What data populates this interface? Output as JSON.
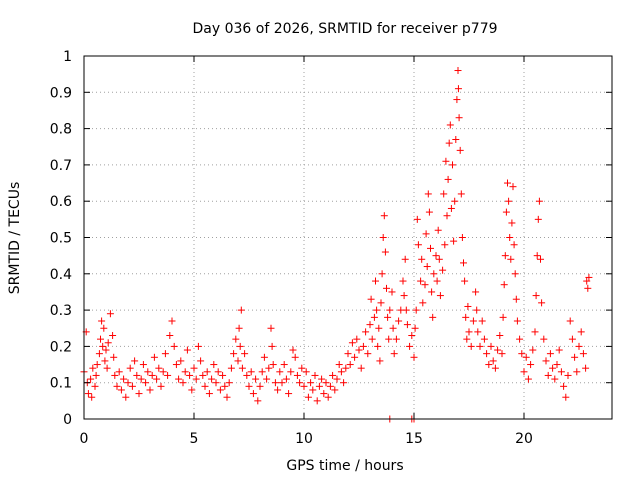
{
  "chart_data": {
    "type": "scatter",
    "title": "Day 036 of 2026, SRMTID for receiver p779",
    "xlabel": "GPS time / hours",
    "ylabel": "SRMTID / TECUs",
    "xlim": [
      0,
      24
    ],
    "ylim": [
      0,
      1
    ],
    "xticks": [
      0,
      5,
      10,
      15,
      20
    ],
    "xtick_labels": [
      "0",
      "5",
      "10",
      "15",
      "20"
    ],
    "yticks": [
      0,
      0.1,
      0.2,
      0.3,
      0.4,
      0.5,
      0.6,
      0.7,
      0.8,
      0.9,
      1
    ],
    "ytick_labels": [
      "0",
      "0.1",
      "0.2",
      "0.3",
      "0.4",
      "0.5",
      "0.6",
      "0.7",
      "0.8",
      "0.9",
      "1"
    ],
    "grid": true,
    "marker": "+",
    "color": "#ff0000",
    "series": [
      {
        "name": "SRMTID",
        "points": [
          [
            0.0,
            0.13
          ],
          [
            0.1,
            0.24
          ],
          [
            0.15,
            0.1
          ],
          [
            0.2,
            0.07
          ],
          [
            0.3,
            0.11
          ],
          [
            0.35,
            0.06
          ],
          [
            0.4,
            0.14
          ],
          [
            0.5,
            0.09
          ],
          [
            0.55,
            0.12
          ],
          [
            0.6,
            0.15
          ],
          [
            0.7,
            0.18
          ],
          [
            0.75,
            0.22
          ],
          [
            0.8,
            0.27
          ],
          [
            0.85,
            0.2
          ],
          [
            0.9,
            0.25
          ],
          [
            0.95,
            0.16
          ],
          [
            1.0,
            0.19
          ],
          [
            1.05,
            0.14
          ],
          [
            1.1,
            0.21
          ],
          [
            1.2,
            0.29
          ],
          [
            1.3,
            0.23
          ],
          [
            1.35,
            0.17
          ],
          [
            1.4,
            0.12
          ],
          [
            1.5,
            0.09
          ],
          [
            1.6,
            0.13
          ],
          [
            1.7,
            0.08
          ],
          [
            1.8,
            0.11
          ],
          [
            1.9,
            0.06
          ],
          [
            2.0,
            0.1
          ],
          [
            2.1,
            0.14
          ],
          [
            2.2,
            0.09
          ],
          [
            2.3,
            0.16
          ],
          [
            2.4,
            0.12
          ],
          [
            2.5,
            0.07
          ],
          [
            2.6,
            0.11
          ],
          [
            2.7,
            0.15
          ],
          [
            2.8,
            0.1
          ],
          [
            2.9,
            0.13
          ],
          [
            3.0,
            0.08
          ],
          [
            3.1,
            0.12
          ],
          [
            3.2,
            0.17
          ],
          [
            3.3,
            0.11
          ],
          [
            3.4,
            0.14
          ],
          [
            3.5,
            0.09
          ],
          [
            3.6,
            0.13
          ],
          [
            3.7,
            0.18
          ],
          [
            3.8,
            0.12
          ],
          [
            3.9,
            0.23
          ],
          [
            4.0,
            0.27
          ],
          [
            4.1,
            0.2
          ],
          [
            4.2,
            0.15
          ],
          [
            4.3,
            0.11
          ],
          [
            4.4,
            0.16
          ],
          [
            4.5,
            0.1
          ],
          [
            4.6,
            0.13
          ],
          [
            4.7,
            0.19
          ],
          [
            4.8,
            0.12
          ],
          [
            4.9,
            0.08
          ],
          [
            5.0,
            0.14
          ],
          [
            5.1,
            0.11
          ],
          [
            5.2,
            0.2
          ],
          [
            5.3,
            0.16
          ],
          [
            5.4,
            0.12
          ],
          [
            5.5,
            0.09
          ],
          [
            5.6,
            0.13
          ],
          [
            5.7,
            0.07
          ],
          [
            5.8,
            0.11
          ],
          [
            5.9,
            0.15
          ],
          [
            6.0,
            0.1
          ],
          [
            6.1,
            0.13
          ],
          [
            6.2,
            0.08
          ],
          [
            6.3,
            0.12
          ],
          [
            6.4,
            0.09
          ],
          [
            6.5,
            0.06
          ],
          [
            6.6,
            0.1
          ],
          [
            6.7,
            0.14
          ],
          [
            6.8,
            0.18
          ],
          [
            6.9,
            0.22
          ],
          [
            7.0,
            0.16
          ],
          [
            7.05,
            0.25
          ],
          [
            7.1,
            0.2
          ],
          [
            7.15,
            0.3
          ],
          [
            7.2,
            0.14
          ],
          [
            7.3,
            0.18
          ],
          [
            7.4,
            0.12
          ],
          [
            7.5,
            0.09
          ],
          [
            7.6,
            0.13
          ],
          [
            7.7,
            0.07
          ],
          [
            7.8,
            0.11
          ],
          [
            7.9,
            0.05
          ],
          [
            8.0,
            0.09
          ],
          [
            8.1,
            0.13
          ],
          [
            8.2,
            0.17
          ],
          [
            8.3,
            0.11
          ],
          [
            8.4,
            0.14
          ],
          [
            8.5,
            0.25
          ],
          [
            8.55,
            0.2
          ],
          [
            8.6,
            0.15
          ],
          [
            8.7,
            0.1
          ],
          [
            8.8,
            0.08
          ],
          [
            8.9,
            0.13
          ],
          [
            9.0,
            0.1
          ],
          [
            9.1,
            0.15
          ],
          [
            9.2,
            0.11
          ],
          [
            9.3,
            0.07
          ],
          [
            9.4,
            0.13
          ],
          [
            9.5,
            0.19
          ],
          [
            9.6,
            0.17
          ],
          [
            9.7,
            0.12
          ],
          [
            9.8,
            0.1
          ],
          [
            9.9,
            0.14
          ],
          [
            10.0,
            0.09
          ],
          [
            10.1,
            0.13
          ],
          [
            10.2,
            0.06
          ],
          [
            10.3,
            0.1
          ],
          [
            10.4,
            0.08
          ],
          [
            10.5,
            0.12
          ],
          [
            10.6,
            0.05
          ],
          [
            10.7,
            0.09
          ],
          [
            10.8,
            0.11
          ],
          [
            10.9,
            0.07
          ],
          [
            11.0,
            0.1
          ],
          [
            11.1,
            0.06
          ],
          [
            11.2,
            0.09
          ],
          [
            11.3,
            0.12
          ],
          [
            11.4,
            0.08
          ],
          [
            11.5,
            0.11
          ],
          [
            11.6,
            0.15
          ],
          [
            11.7,
            0.13
          ],
          [
            11.8,
            0.1
          ],
          [
            11.9,
            0.14
          ],
          [
            12.0,
            0.18
          ],
          [
            12.1,
            0.15
          ],
          [
            12.2,
            0.21
          ],
          [
            12.3,
            0.17
          ],
          [
            12.4,
            0.22
          ],
          [
            12.5,
            0.19
          ],
          [
            12.6,
            0.14
          ],
          [
            12.7,
            0.2
          ],
          [
            12.8,
            0.24
          ],
          [
            12.9,
            0.18
          ],
          [
            13.0,
            0.26
          ],
          [
            13.05,
            0.33
          ],
          [
            13.1,
            0.22
          ],
          [
            13.2,
            0.28
          ],
          [
            13.25,
            0.38
          ],
          [
            13.3,
            0.3
          ],
          [
            13.35,
            0.2
          ],
          [
            13.4,
            0.25
          ],
          [
            13.45,
            0.16
          ],
          [
            13.5,
            0.32
          ],
          [
            13.55,
            0.4
          ],
          [
            13.6,
            0.5
          ],
          [
            13.65,
            0.56
          ],
          [
            13.7,
            0.46
          ],
          [
            13.75,
            0.36
          ],
          [
            13.8,
            0.28
          ],
          [
            13.85,
            0.22
          ],
          [
            13.9,
            0.3
          ],
          [
            14.0,
            0.35
          ],
          [
            14.05,
            0.25
          ],
          [
            14.1,
            0.18
          ],
          [
            14.2,
            0.22
          ],
          [
            14.3,
            0.27
          ],
          [
            14.4,
            0.3
          ],
          [
            14.5,
            0.38
          ],
          [
            14.55,
            0.34
          ],
          [
            14.6,
            0.44
          ],
          [
            14.65,
            0.3
          ],
          [
            14.7,
            0.26
          ],
          [
            14.8,
            0.2
          ],
          [
            14.9,
            0.23
          ],
          [
            15.0,
            0.17
          ],
          [
            15.05,
            0.25
          ],
          [
            15.1,
            0.3
          ],
          [
            15.15,
            0.55
          ],
          [
            15.2,
            0.48
          ],
          [
            15.3,
            0.38
          ],
          [
            15.35,
            0.44
          ],
          [
            15.4,
            0.32
          ],
          [
            15.5,
            0.37
          ],
          [
            15.55,
            0.51
          ],
          [
            15.6,
            0.42
          ],
          [
            15.65,
            0.62
          ],
          [
            15.7,
            0.57
          ],
          [
            15.75,
            0.47
          ],
          [
            15.8,
            0.35
          ],
          [
            15.85,
            0.28
          ],
          [
            15.9,
            0.4
          ],
          [
            16.0,
            0.45
          ],
          [
            16.05,
            0.38
          ],
          [
            16.1,
            0.52
          ],
          [
            16.15,
            0.44
          ],
          [
            16.2,
            0.34
          ],
          [
            16.3,
            0.41
          ],
          [
            16.35,
            0.62
          ],
          [
            16.4,
            0.48
          ],
          [
            16.45,
            0.71
          ],
          [
            16.5,
            0.56
          ],
          [
            16.55,
            0.66
          ],
          [
            16.6,
            0.76
          ],
          [
            16.65,
            0.81
          ],
          [
            16.7,
            0.58
          ],
          [
            16.75,
            0.7
          ],
          [
            16.8,
            0.49
          ],
          [
            16.85,
            0.6
          ],
          [
            16.9,
            0.77
          ],
          [
            16.95,
            0.88
          ],
          [
            17.0,
            0.96
          ],
          [
            17.02,
            0.91
          ],
          [
            17.05,
            0.83
          ],
          [
            17.1,
            0.74
          ],
          [
            17.15,
            0.62
          ],
          [
            17.2,
            0.5
          ],
          [
            17.25,
            0.43
          ],
          [
            17.3,
            0.38
          ],
          [
            17.35,
            0.28
          ],
          [
            17.4,
            0.22
          ],
          [
            17.45,
            0.31
          ],
          [
            17.5,
            0.24
          ],
          [
            17.6,
            0.2
          ],
          [
            17.7,
            0.27
          ],
          [
            17.8,
            0.35
          ],
          [
            17.85,
            0.3
          ],
          [
            17.9,
            0.24
          ],
          [
            18.0,
            0.2
          ],
          [
            18.1,
            0.27
          ],
          [
            18.2,
            0.22
          ],
          [
            18.3,
            0.18
          ],
          [
            18.4,
            0.15
          ],
          [
            18.5,
            0.2
          ],
          [
            18.6,
            0.16
          ],
          [
            18.7,
            0.14
          ],
          [
            18.8,
            0.19
          ],
          [
            18.9,
            0.23
          ],
          [
            19.0,
            0.18
          ],
          [
            19.05,
            0.28
          ],
          [
            19.1,
            0.37
          ],
          [
            19.15,
            0.45
          ],
          [
            19.2,
            0.57
          ],
          [
            19.25,
            0.65
          ],
          [
            19.3,
            0.6
          ],
          [
            19.35,
            0.5
          ],
          [
            19.4,
            0.44
          ],
          [
            19.45,
            0.54
          ],
          [
            19.5,
            0.64
          ],
          [
            19.55,
            0.48
          ],
          [
            19.6,
            0.4
          ],
          [
            19.65,
            0.33
          ],
          [
            19.7,
            0.27
          ],
          [
            19.8,
            0.22
          ],
          [
            19.9,
            0.18
          ],
          [
            20.0,
            0.13
          ],
          [
            20.1,
            0.17
          ],
          [
            20.2,
            0.11
          ],
          [
            20.3,
            0.15
          ],
          [
            20.4,
            0.19
          ],
          [
            20.5,
            0.24
          ],
          [
            20.55,
            0.34
          ],
          [
            20.6,
            0.45
          ],
          [
            20.65,
            0.55
          ],
          [
            20.7,
            0.6
          ],
          [
            20.75,
            0.44
          ],
          [
            20.8,
            0.32
          ],
          [
            20.9,
            0.22
          ],
          [
            21.0,
            0.16
          ],
          [
            21.1,
            0.12
          ],
          [
            21.2,
            0.18
          ],
          [
            21.3,
            0.14
          ],
          [
            21.4,
            0.11
          ],
          [
            21.5,
            0.15
          ],
          [
            21.6,
            0.19
          ],
          [
            21.7,
            0.13
          ],
          [
            21.8,
            0.09
          ],
          [
            21.9,
            0.06
          ],
          [
            22.0,
            0.12
          ],
          [
            22.1,
            0.27
          ],
          [
            22.2,
            0.22
          ],
          [
            22.3,
            0.17
          ],
          [
            22.4,
            0.13
          ],
          [
            22.5,
            0.2
          ],
          [
            22.6,
            0.24
          ],
          [
            22.7,
            0.18
          ],
          [
            22.8,
            0.14
          ],
          [
            22.85,
            0.38
          ],
          [
            22.9,
            0.36
          ],
          [
            22.95,
            0.39
          ],
          [
            13.9,
            0.0
          ],
          [
            14.9,
            0.0
          ],
          [
            15.0,
            0.0
          ]
        ]
      }
    ]
  }
}
